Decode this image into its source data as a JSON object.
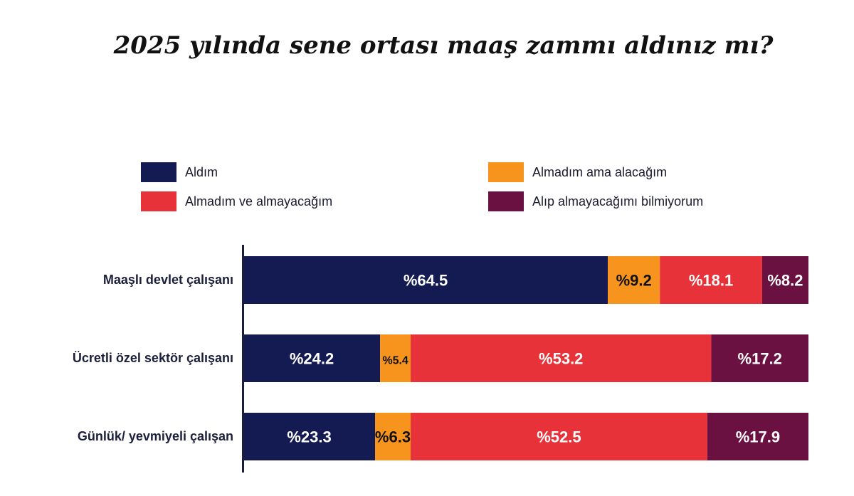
{
  "chart_data": {
    "type": "bar",
    "orientation": "horizontal",
    "stacked": true,
    "title": "2025 yılında sene ortası maaş zammı aldınız mı?",
    "categories": [
      "Maaşlı devlet çalışanı",
      "Ücretli özel sektör çalışanı",
      "Günlük/ yevmiyeli çalışan"
    ],
    "series": [
      {
        "name": "Aldım",
        "color": "#141a52",
        "values": [
          64.5,
          24.2,
          23.3
        ],
        "labels": [
          "%64.5",
          "%24.2",
          "%23.3"
        ]
      },
      {
        "name": "Almadım ama alacağım",
        "color": "#f7941d",
        "values": [
          9.2,
          5.4,
          6.3
        ],
        "labels": [
          "%9.2",
          "%5.4",
          "%6.3"
        ]
      },
      {
        "name": "Almadım ve almayacağım",
        "color": "#e8323a",
        "values": [
          18.1,
          53.2,
          52.5
        ],
        "labels": [
          "%18.1",
          "%53.2",
          "%52.5"
        ]
      },
      {
        "name": "Alıp almayacağımı bilmiyorum",
        "color": "#6a1142",
        "values": [
          8.2,
          17.2,
          17.9
        ],
        "labels": [
          "%8.2",
          "%17.2",
          "%17.9"
        ]
      }
    ],
    "legend_labels": [
      "Aldım",
      "Almadım ama alacağım",
      "Almadım ve almayacağım",
      "Alıp almayacağımı bilmiyorum"
    ],
    "xlim": [
      0,
      100
    ],
    "legend_position": "top",
    "grid": false
  }
}
